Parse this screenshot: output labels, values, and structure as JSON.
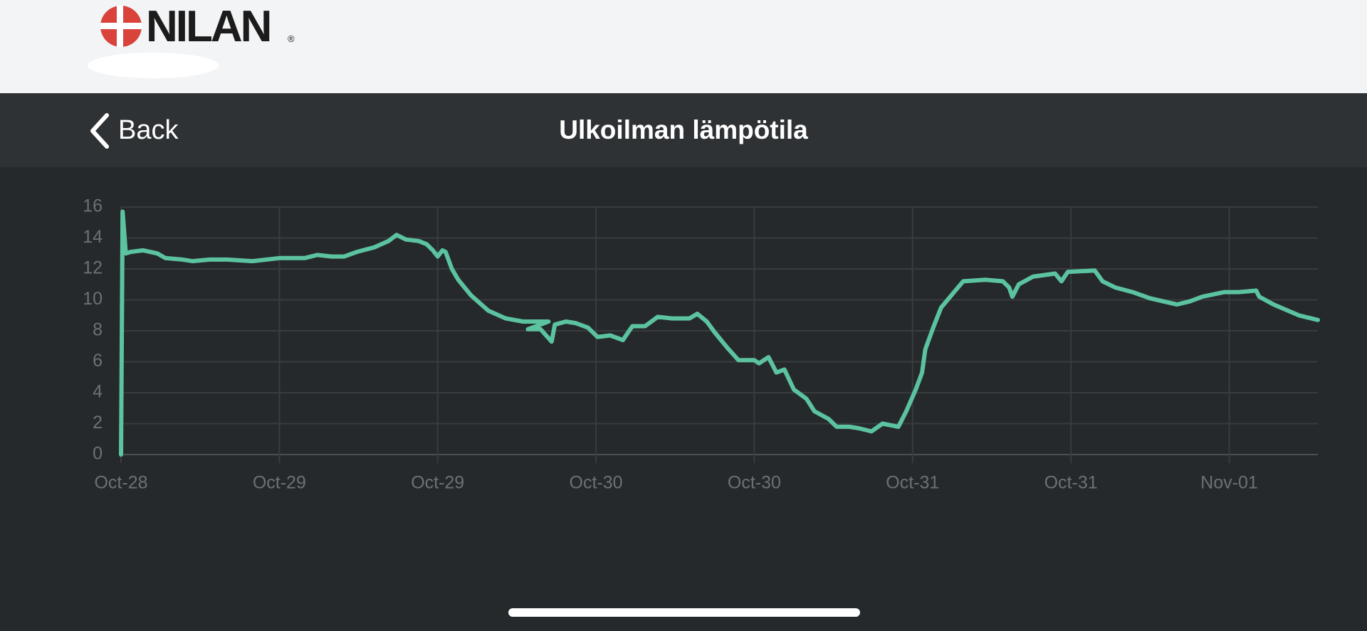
{
  "header": {
    "logo_text": "NILAN",
    "logo_mark": "®"
  },
  "nav": {
    "back": "Back",
    "title": "Ulkoilman lämpötila"
  },
  "chart_data": {
    "type": "line",
    "color": "#5cc3a0",
    "grid": true,
    "ylim": [
      0,
      16
    ],
    "yticks": [
      0,
      2,
      4,
      6,
      8,
      10,
      12,
      14,
      16
    ],
    "xlim": [
      0,
      7.56
    ],
    "xticks": [
      {
        "value": 0,
        "label": "Oct-28"
      },
      {
        "value": 1,
        "label": "Oct-29"
      },
      {
        "value": 2,
        "label": "Oct-29"
      },
      {
        "value": 3,
        "label": "Oct-30"
      },
      {
        "value": 4,
        "label": "Oct-30"
      },
      {
        "value": 5,
        "label": "Oct-31"
      },
      {
        "value": 6,
        "label": "Oct-31"
      },
      {
        "value": 7,
        "label": "Nov-01"
      }
    ],
    "x": [
      0,
      0.01,
      0.03,
      0.06,
      0.14,
      0.23,
      0.28,
      0.39,
      0.45,
      0.56,
      0.67,
      0.83,
      1.0,
      1.16,
      1.24,
      1.33,
      1.41,
      1.49,
      1.6,
      1.69,
      1.74,
      1.8,
      1.88,
      1.93,
      1.97,
      2.0,
      2.03,
      2.05,
      2.09,
      2.13,
      2.21,
      2.32,
      2.43,
      2.54,
      2.62,
      2.7,
      2.57,
      2.65,
      2.72,
      2.74,
      2.81,
      2.87,
      2.95,
      3.01,
      3.09,
      3.17,
      3.23,
      3.31,
      3.39,
      3.48,
      3.59,
      3.64,
      3.7,
      3.75,
      3.83,
      3.9,
      4.0,
      4.03,
      4.09,
      4.14,
      4.19,
      4.25,
      4.33,
      4.38,
      4.47,
      4.52,
      4.6,
      4.66,
      4.74,
      4.81,
      4.91,
      4.96,
      5.02,
      5.06,
      5.08,
      5.13,
      5.18,
      5.27,
      5.32,
      5.46,
      5.57,
      5.61,
      5.63,
      5.67,
      5.76,
      5.9,
      5.94,
      5.98,
      6.15,
      6.2,
      6.28,
      6.39,
      6.5,
      6.67,
      6.75,
      6.83,
      6.97,
      7.06,
      7.17,
      7.19,
      7.28,
      7.44,
      7.56
    ],
    "values": [
      0,
      15.7,
      13.0,
      13.1,
      13.2,
      13.0,
      12.7,
      12.6,
      12.5,
      12.6,
      12.6,
      12.5,
      12.7,
      12.7,
      12.9,
      12.8,
      12.8,
      13.1,
      13.4,
      13.8,
      14.2,
      13.9,
      13.8,
      13.6,
      13.2,
      12.8,
      13.2,
      13.1,
      12.0,
      11.3,
      10.3,
      9.3,
      8.8,
      8.6,
      8.6,
      8.6,
      8.1,
      8.1,
      7.3,
      8.4,
      8.6,
      8.5,
      8.2,
      7.6,
      7.7,
      7.4,
      8.3,
      8.3,
      8.9,
      8.8,
      8.8,
      9.1,
      8.6,
      7.9,
      6.9,
      6.1,
      6.1,
      5.9,
      6.3,
      5.3,
      5.5,
      4.2,
      3.6,
      2.8,
      2.3,
      1.8,
      1.8,
      1.7,
      1.5,
      2.0,
      1.8,
      2.8,
      4.2,
      5.3,
      6.8,
      8.2,
      9.5,
      10.6,
      11.2,
      11.3,
      11.2,
      10.8,
      10.2,
      11.0,
      11.5,
      11.7,
      11.2,
      11.8,
      11.9,
      11.2,
      10.8,
      10.5,
      10.1,
      9.7,
      9.9,
      10.2,
      10.5,
      10.5,
      10.6,
      10.2,
      9.7,
      9.0,
      8.7
    ]
  }
}
